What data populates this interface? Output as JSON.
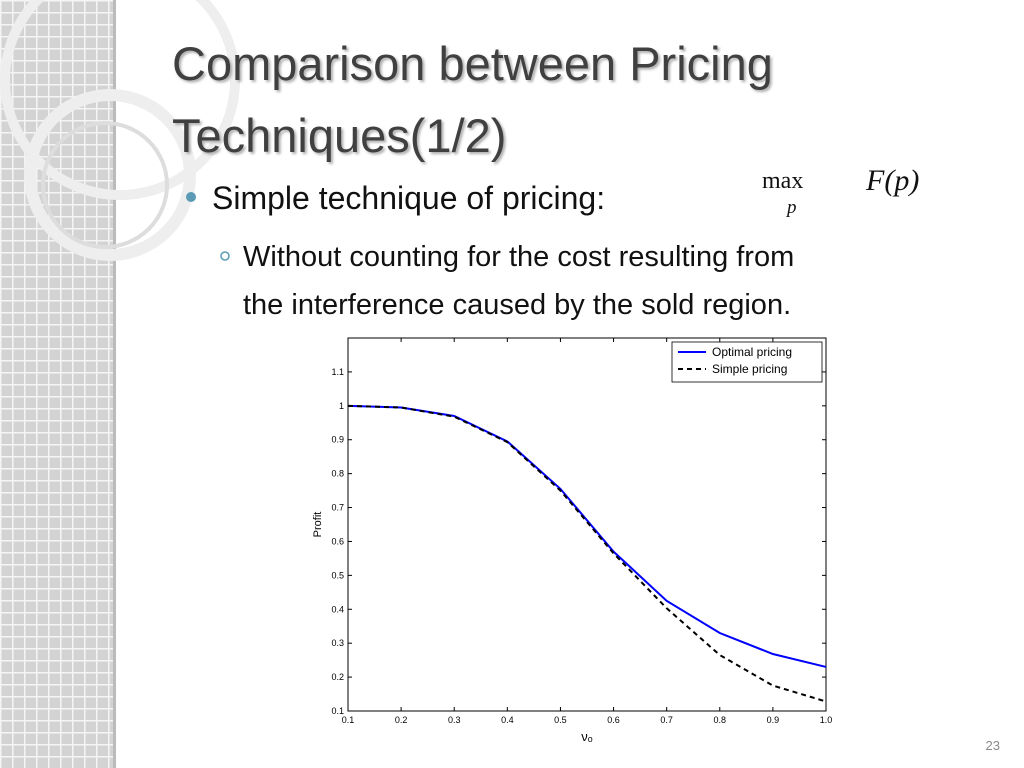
{
  "slide": {
    "title": [
      "Comparison between Pricing",
      "Techniques(1/2)"
    ],
    "bullet": "Simple technique of pricing:",
    "formula": {
      "op": "max",
      "sub": "p",
      "expr": "F(p)"
    },
    "sub_bullet": [
      "Without counting for the cost resulting from",
      "the interference caused by the sold region."
    ],
    "page_number": "23"
  },
  "chart_data": {
    "type": "line",
    "xlabel": "νₒ",
    "ylabel": "Profit",
    "x": [
      0.1,
      0.2,
      0.3,
      0.4,
      0.5,
      0.6,
      0.7,
      0.8,
      0.9,
      1.0
    ],
    "series": [
      {
        "name": "Optimal pricing",
        "color": "#0000ff",
        "style": "solid",
        "values": [
          1.0,
          0.995,
          0.97,
          0.895,
          0.755,
          0.57,
          0.425,
          0.33,
          0.268,
          0.23
        ]
      },
      {
        "name": "Simple pricing",
        "color": "#000000",
        "style": "dashed",
        "values": [
          1.0,
          0.995,
          0.968,
          0.893,
          0.75,
          0.565,
          0.403,
          0.265,
          0.175,
          0.128
        ]
      }
    ],
    "xlim": [
      0.1,
      1.0
    ],
    "ylim": [
      0.1,
      1.2
    ],
    "xticks": [
      0.1,
      0.2,
      0.3,
      0.4,
      0.5,
      0.6,
      0.7,
      0.8,
      0.9,
      {
        "value": 1.0,
        "label": "1.0"
      }
    ],
    "yticks": [
      0.1,
      0.2,
      0.3,
      0.4,
      0.5,
      0.6,
      0.7,
      0.8,
      0.9,
      1,
      1.1
    ],
    "grid": false,
    "legend": "upper right"
  }
}
